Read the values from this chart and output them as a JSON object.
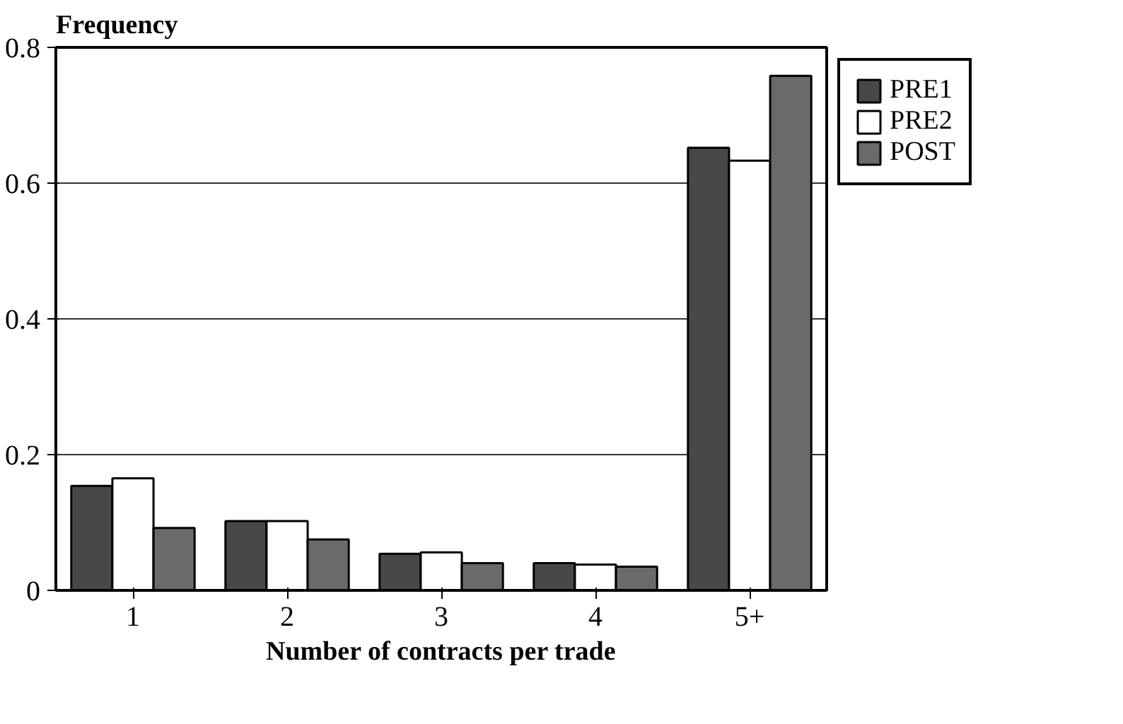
{
  "chart_data": {
    "type": "bar",
    "xlabel": "Number of contracts per trade",
    "ylabel": "Frequency",
    "categories": [
      "1",
      "2",
      "3",
      "4",
      "5+"
    ],
    "series": [
      {
        "name": "PRE1",
        "color": "#484848",
        "values": [
          0.154,
          0.102,
          0.054,
          0.04,
          0.652
        ]
      },
      {
        "name": "PRE2",
        "color": "#ffffff",
        "values": [
          0.165,
          0.102,
          0.056,
          0.038,
          0.633
        ]
      },
      {
        "name": "POST",
        "color": "#6a6a6a",
        "values": [
          0.092,
          0.075,
          0.04,
          0.035,
          0.758
        ]
      }
    ],
    "ylim": [
      0,
      0.8
    ],
    "yticks": [
      0,
      0.2,
      0.4,
      0.6,
      0.8
    ],
    "grid": "y",
    "legend": "top right"
  }
}
